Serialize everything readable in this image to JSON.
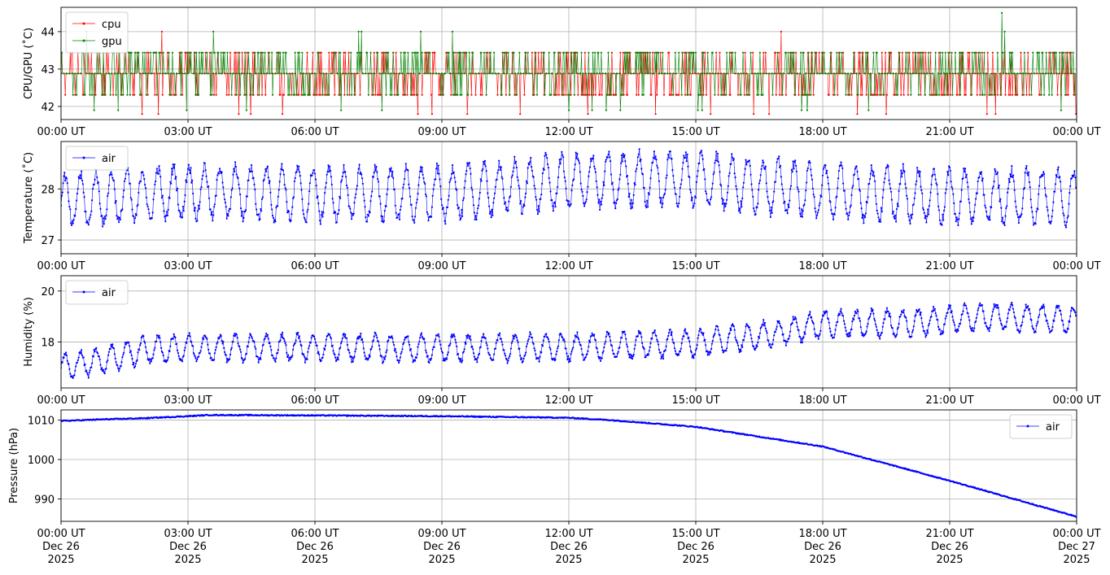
{
  "chart_data": [
    {
      "type": "line",
      "ylabel": "CPU/GPU (˚C)",
      "ylim": [
        41.65,
        44.65
      ],
      "yticks": [
        42,
        43,
        44
      ],
      "grid": true,
      "legend": "upper left",
      "x_axis": {
        "start": "2025-12-26 00:00 UT",
        "end": "2025-12-27 00:00 UT",
        "tick_labels": [
          "00:00 UT",
          "03:00 UT",
          "06:00 UT",
          "09:00 UT",
          "12:00 UT",
          "15:00 UT",
          "18:00 UT",
          "21:00 UT",
          "00:00 UT"
        ]
      },
      "series": [
        {
          "name": "cpu",
          "color": "#ff0000",
          "gen": "toggle",
          "base": 42.88,
          "levels": [
            42.31,
            43.44,
            42.88,
            42.31,
            43.44,
            41.8,
            44.0
          ],
          "spike_max": 44.0
        },
        {
          "name": "gpu",
          "color": "#008000",
          "gen": "toggle",
          "base": 42.88,
          "levels": [
            43.44,
            42.31,
            42.88,
            43.44,
            42.31,
            41.9,
            44.0
          ],
          "spike_max": 44.5
        }
      ]
    },
    {
      "type": "line",
      "ylabel": "Temperature (˚C)",
      "ylim": [
        26.73,
        28.93
      ],
      "yticks": [
        27,
        28
      ],
      "grid": true,
      "legend": "upper left",
      "x_axis": {
        "start": "2025-12-26 00:00 UT",
        "end": "2025-12-27 00:00 UT",
        "tick_labels": [
          "00:00 UT",
          "03:00 UT",
          "06:00 UT",
          "09:00 UT",
          "12:00 UT",
          "15:00 UT",
          "18:00 UT",
          "21:00 UT",
          "00:00 UT"
        ]
      },
      "series": [
        {
          "name": "air",
          "color": "#0000ff",
          "gen": "oscillate",
          "center": 28.0,
          "keys": [
            [
              0,
              27.75
            ],
            [
              3,
              27.95
            ],
            [
              6,
              27.9
            ],
            [
              9,
              27.9
            ],
            [
              12,
              28.15
            ],
            [
              14,
              28.2
            ],
            [
              15,
              28.2
            ],
            [
              18,
              27.95
            ],
            [
              21,
              27.85
            ],
            [
              24,
              27.85
            ]
          ],
          "amp": 0.5,
          "period_min": 22,
          "min": 26.85,
          "max": 28.85
        }
      ]
    },
    {
      "type": "line",
      "ylabel": "Humidity (%)",
      "ylim": [
        16.2,
        20.6
      ],
      "yticks": [
        18,
        20
      ],
      "grid": true,
      "legend": "upper left",
      "x_axis": {
        "start": "2025-12-26 00:00 UT",
        "end": "2025-12-27 00:00 UT",
        "tick_labels": [
          "00:00 UT",
          "03:00 UT",
          "06:00 UT",
          "09:00 UT",
          "12:00 UT",
          "15:00 UT",
          "18:00 UT",
          "21:00 UT",
          "00:00 UT"
        ]
      },
      "series": [
        {
          "name": "air",
          "color": "#0000ff",
          "gen": "oscillate",
          "center": 17.8,
          "keys": [
            [
              0,
              17.0
            ],
            [
              1,
              17.3
            ],
            [
              2,
              17.7
            ],
            [
              3,
              17.75
            ],
            [
              6,
              17.8
            ],
            [
              9,
              17.75
            ],
            [
              12,
              17.8
            ],
            [
              15,
              17.95
            ],
            [
              17,
              18.35
            ],
            [
              18,
              18.7
            ],
            [
              20,
              18.75
            ],
            [
              22,
              19.0
            ],
            [
              24,
              18.85
            ]
          ],
          "amp": 0.5,
          "period_min": 22,
          "min": 16.4,
          "max": 20.4
        }
      ]
    },
    {
      "type": "line",
      "ylabel": "Pressure (hPa)",
      "ylim": [
        984.3,
        1012.6
      ],
      "yticks": [
        990,
        1000,
        1010
      ],
      "grid": true,
      "legend": "upper right",
      "x_axis": {
        "start": "2025-12-26 00:00 UT",
        "end": "2025-12-27 00:00 UT",
        "tick_labels": [
          "00:00 UT\nDec 26\n2025",
          "03:00 UT\nDec 26\n2025",
          "06:00 UT\nDec 26\n2025",
          "09:00 UT\nDec 26\n2025",
          "12:00 UT\nDec 26\n2025",
          "15:00 UT\nDec 26\n2025",
          "18:00 UT\nDec 26\n2025",
          "21:00 UT\nDec 26\n2025",
          "00:00 UT\nDec 27\n2025"
        ]
      },
      "series": [
        {
          "name": "air",
          "color": "#0000ff",
          "gen": "smooth",
          "keys": [
            [
              0,
              1009.8
            ],
            [
              1,
              1010.2
            ],
            [
              2,
              1010.5
            ],
            [
              3,
              1011.0
            ],
            [
              3.5,
              1011.3
            ],
            [
              6,
              1011.2
            ],
            [
              9,
              1011.0
            ],
            [
              12,
              1010.6
            ],
            [
              13,
              1010.0
            ],
            [
              15,
              1008.3
            ],
            [
              18,
              1003.3
            ],
            [
              21,
              994.6
            ],
            [
              24,
              985.5
            ]
          ],
          "noise": 0.25
        }
      ]
    }
  ]
}
